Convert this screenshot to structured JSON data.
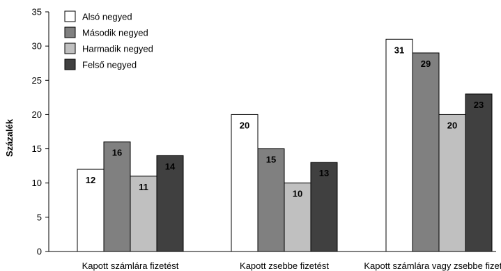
{
  "chart_data": {
    "type": "bar",
    "title": "",
    "xlabel": "",
    "ylabel": "Százalék",
    "ylim": [
      0,
      35
    ],
    "yticks": [
      0,
      5,
      10,
      15,
      20,
      25,
      30,
      35
    ],
    "grid": false,
    "legend_position": "top-left",
    "categories": [
      "Kapott számlára fizetést",
      "Kapott zsebbe fizetést",
      "Kapott számlára vagy zsebbe fizetést"
    ],
    "series": [
      {
        "name": "Alsó negyed",
        "color": "#ffffff",
        "label_color": "#000000",
        "values": [
          12,
          20,
          31
        ]
      },
      {
        "name": "Második negyed",
        "color": "#808080",
        "label_color": "#000000",
        "values": [
          16,
          15,
          29
        ]
      },
      {
        "name": "Harmadik negyed",
        "color": "#c0c0c0",
        "label_color": "#000000",
        "values": [
          11,
          10,
          20
        ]
      },
      {
        "name": "Felső negyed",
        "color": "#404040",
        "label_color": "#000000",
        "values": [
          14,
          13,
          23
        ]
      }
    ]
  }
}
